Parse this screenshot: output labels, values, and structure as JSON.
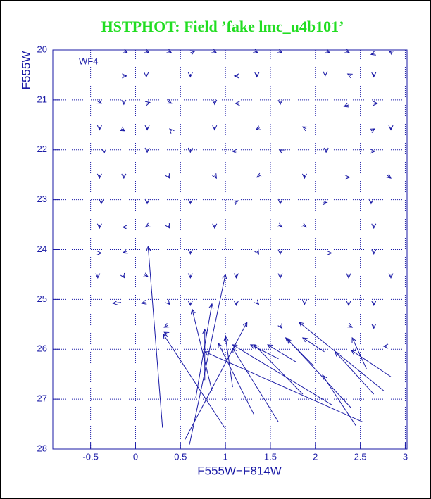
{
  "chart_data": {
    "type": "vector",
    "title": "HSTPHOT: Field ’fake lmc_u4b101’",
    "xlabel": "F555W−F814W",
    "ylabel": "F555W",
    "annotation": "WF4",
    "xlim": [
      -0.92,
      3.02
    ],
    "ylim": [
      28,
      20
    ],
    "xticks": [
      -0.5,
      0,
      0.5,
      1,
      1.5,
      2,
      2.5,
      3
    ],
    "yticks": [
      20,
      21,
      22,
      23,
      24,
      25,
      26,
      27,
      28
    ],
    "grid": true,
    "color": "#1a1aa6",
    "arrows": [
      [
        -0.13,
        20.02,
        -0.09,
        20.06
      ],
      [
        0.11,
        20.02,
        0.15,
        20.06
      ],
      [
        0.36,
        20.02,
        0.4,
        20.06
      ],
      [
        0.61,
        20.06,
        0.66,
        20.02
      ],
      [
        0.86,
        20.02,
        0.9,
        20.06
      ],
      [
        1.32,
        20.02,
        1.36,
        20.06
      ],
      [
        1.59,
        20.02,
        1.63,
        20.06
      ],
      [
        2.12,
        20.02,
        2.16,
        20.06
      ],
      [
        2.34,
        20.02,
        2.38,
        20.06
      ],
      [
        2.67,
        20.06,
        2.62,
        20.09
      ],
      [
        2.86,
        20.06,
        2.82,
        20.02
      ],
      [
        -0.14,
        20.52,
        -0.1,
        20.52
      ],
      [
        0.12,
        20.48,
        0.12,
        20.54
      ],
      [
        0.61,
        20.48,
        0.61,
        20.54
      ],
      [
        1.14,
        20.52,
        1.1,
        20.52
      ],
      [
        1.35,
        20.48,
        1.35,
        20.54
      ],
      [
        2.11,
        20.48,
        2.11,
        20.52
      ],
      [
        2.4,
        20.52,
        2.36,
        20.48
      ],
      [
        2.65,
        20.48,
        2.65,
        20.54
      ],
      [
        -0.42,
        21.03,
        -0.38,
        21.07
      ],
      [
        -0.13,
        21.03,
        -0.13,
        21.09
      ],
      [
        0.12,
        21.07,
        0.16,
        21.05
      ],
      [
        0.36,
        21.03,
        0.4,
        21.07
      ],
      [
        0.88,
        21.03,
        0.88,
        21.09
      ],
      [
        1.15,
        21.07,
        1.11,
        21.07
      ],
      [
        1.61,
        21.03,
        1.61,
        21.09
      ],
      [
        2.37,
        21.1,
        2.32,
        21.13
      ],
      [
        2.65,
        21.07,
        2.69,
        21.07
      ],
      [
        -0.4,
        21.54,
        -0.4,
        21.6
      ],
      [
        -0.16,
        21.58,
        -0.12,
        21.62
      ],
      [
        0.13,
        21.54,
        0.13,
        21.6
      ],
      [
        0.4,
        21.62,
        0.38,
        21.58
      ],
      [
        0.88,
        21.54,
        0.88,
        21.6
      ],
      [
        1.38,
        21.56,
        1.34,
        21.6
      ],
      [
        1.9,
        21.58,
        1.86,
        21.54
      ],
      [
        2.62,
        21.62,
        2.66,
        21.58
      ],
      [
        2.84,
        21.54,
        2.84,
        21.6
      ],
      [
        -0.35,
        22.03,
        -0.35,
        22.07
      ],
      [
        0.13,
        21.99,
        0.13,
        22.05
      ],
      [
        0.61,
        21.99,
        0.61,
        22.05
      ],
      [
        1.12,
        22.03,
        1.08,
        22.03
      ],
      [
        1.63,
        22.03,
        1.6,
        22.0
      ],
      [
        2.12,
        21.99,
        2.12,
        22.05
      ],
      [
        2.62,
        22.03,
        2.66,
        22.03
      ],
      [
        -0.4,
        22.51,
        -0.4,
        22.57
      ],
      [
        -0.13,
        22.51,
        -0.13,
        22.57
      ],
      [
        0.36,
        22.51,
        0.38,
        22.57
      ],
      [
        0.88,
        22.51,
        0.9,
        22.57
      ],
      [
        1.39,
        22.51,
        1.35,
        22.55
      ],
      [
        1.88,
        22.51,
        1.88,
        22.57
      ],
      [
        2.34,
        22.55,
        2.38,
        22.55
      ],
      [
        2.8,
        22.51,
        2.84,
        22.57
      ],
      [
        -0.38,
        23.02,
        -0.38,
        23.08
      ],
      [
        0.13,
        23.02,
        0.13,
        23.08
      ],
      [
        0.61,
        23.02,
        0.61,
        23.08
      ],
      [
        1.1,
        23.06,
        1.14,
        23.02
      ],
      [
        1.61,
        23.02,
        1.61,
        23.08
      ],
      [
        2.09,
        23.06,
        2.13,
        23.06
      ],
      [
        2.62,
        23.02,
        2.62,
        23.08
      ],
      [
        -0.4,
        23.51,
        -0.4,
        23.57
      ],
      [
        -0.1,
        23.55,
        -0.14,
        23.55
      ],
      [
        0.15,
        23.51,
        0.11,
        23.55
      ],
      [
        0.36,
        23.51,
        0.38,
        23.57
      ],
      [
        0.88,
        23.51,
        0.88,
        23.57
      ],
      [
        1.59,
        23.51,
        1.63,
        23.55
      ],
      [
        1.86,
        23.51,
        1.9,
        23.55
      ],
      [
        2.65,
        23.51,
        2.65,
        23.57
      ],
      [
        -0.42,
        24.07,
        -0.38,
        24.07
      ],
      [
        -0.1,
        24.04,
        -0.14,
        24.07
      ],
      [
        0.61,
        24.03,
        0.61,
        24.09
      ],
      [
        1.35,
        24.03,
        1.37,
        24.09
      ],
      [
        1.61,
        24.03,
        1.61,
        24.09
      ],
      [
        2.14,
        24.07,
        2.18,
        24.07
      ],
      [
        2.65,
        24.03,
        2.65,
        24.09
      ],
      [
        -0.42,
        24.51,
        -0.42,
        24.57
      ],
      [
        -0.14,
        24.51,
        -0.12,
        24.57
      ],
      [
        0.1,
        24.51,
        0.14,
        24.55
      ],
      [
        0.61,
        24.51,
        0.61,
        24.57
      ],
      [
        1.12,
        24.51,
        1.12,
        24.57
      ],
      [
        1.61,
        24.51,
        1.61,
        24.57
      ],
      [
        2.37,
        24.51,
        2.37,
        24.57
      ],
      [
        2.84,
        24.51,
        2.84,
        24.57
      ],
      [
        -0.16,
        25.06,
        -0.25,
        25.08
      ],
      [
        0.11,
        25.06,
        0.07,
        25.08
      ],
      [
        0.36,
        25.06,
        0.38,
        25.1
      ],
      [
        0.61,
        25.06,
        0.61,
        25.12
      ],
      [
        1.12,
        25.06,
        1.12,
        25.12
      ],
      [
        1.35,
        25.06,
        1.37,
        25.1
      ],
      [
        1.88,
        25.06,
        1.88,
        25.1
      ],
      [
        2.37,
        25.06,
        2.37,
        25.12
      ],
      [
        2.65,
        25.06,
        2.65,
        25.12
      ],
      [
        0.36,
        25.52,
        0.32,
        25.56
      ],
      [
        1.61,
        25.52,
        1.63,
        25.58
      ],
      [
        2.37,
        25.52,
        2.41,
        25.56
      ],
      [
        2.65,
        25.52,
        2.65,
        25.58
      ],
      [
        0.36,
        25.7,
        0.32,
        25.66
      ],
      [
        2.8,
        25.94,
        2.76,
        25.94
      ],
      [
        0.3,
        27.57,
        0.14,
        23.94
      ],
      [
        0.99,
        27.57,
        0.31,
        25.7
      ],
      [
        0.6,
        27.91,
        1.0,
        24.5
      ],
      [
        0.67,
        26.97,
        0.85,
        25.09
      ],
      [
        0.85,
        26.83,
        0.63,
        25.2
      ],
      [
        0.77,
        26.62,
        0.77,
        25.6
      ],
      [
        0.55,
        27.81,
        1.24,
        25.46
      ],
      [
        1.59,
        27.46,
        1.08,
        25.98
      ],
      [
        1.32,
        27.32,
        0.92,
        25.88
      ],
      [
        1.08,
        26.76,
        1.0,
        25.74
      ],
      [
        2.53,
        27.46,
        0.77,
        26.05
      ],
      [
        2.18,
        27.11,
        1.08,
        25.91
      ],
      [
        2.45,
        27.53,
        2.08,
        26.52
      ],
      [
        2.4,
        27.18,
        1.69,
        25.8
      ],
      [
        2.76,
        26.83,
        1.82,
        25.46
      ],
      [
        2.65,
        26.9,
        2.22,
        26.05
      ],
      [
        2.84,
        26.55,
        2.4,
        26.02
      ],
      [
        1.86,
        26.9,
        1.32,
        25.91
      ],
      [
        1.98,
        26.33,
        1.67,
        25.77
      ],
      [
        1.59,
        26.19,
        1.28,
        25.91
      ],
      [
        2.1,
        26.05,
        1.86,
        25.77
      ],
      [
        2.57,
        26.4,
        2.41,
        25.77
      ],
      [
        1.79,
        26.26,
        1.47,
        25.91
      ]
    ]
  }
}
